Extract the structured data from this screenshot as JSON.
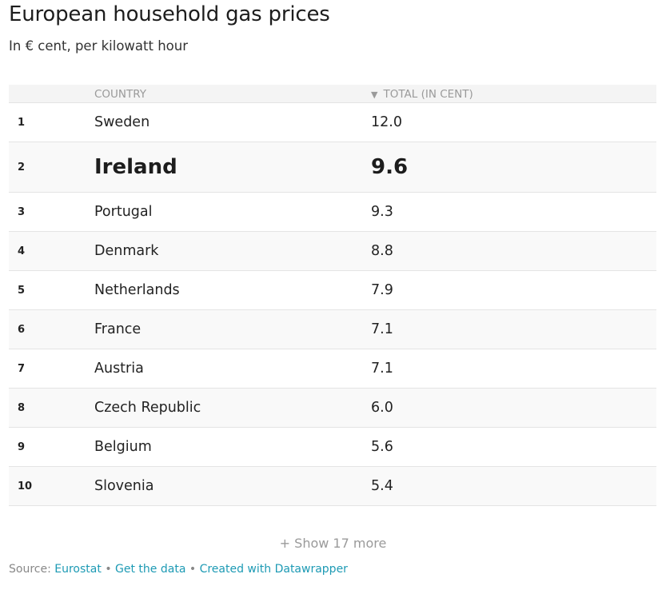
{
  "title": "European household gas prices",
  "subtitle": "In € cent, per kilowatt hour",
  "table": {
    "headers": {
      "country": "COUNTRY",
      "total": "TOTAL (IN CENT)",
      "sort_icon": "▼"
    }
  },
  "chart_data": {
    "type": "table",
    "title": "European household gas prices",
    "subtitle": "In € cent, per kilowatt hour",
    "columns": [
      "",
      "COUNTRY",
      "TOTAL (IN CENT)"
    ],
    "sorted_by": "TOTAL (IN CENT)",
    "sort_order": "descending",
    "highlighted": "Ireland",
    "rows": [
      {
        "rank": "1",
        "country": "Sweden",
        "value": "12.0"
      },
      {
        "rank": "2",
        "country": "Ireland",
        "value": "9.6"
      },
      {
        "rank": "3",
        "country": "Portugal",
        "value": "9.3"
      },
      {
        "rank": "4",
        "country": "Denmark",
        "value": "8.8"
      },
      {
        "rank": "5",
        "country": "Netherlands",
        "value": "7.9"
      },
      {
        "rank": "6",
        "country": "France",
        "value": "7.1"
      },
      {
        "rank": "7",
        "country": "Austria",
        "value": "7.1"
      },
      {
        "rank": "8",
        "country": "Czech Republic",
        "value": "6.0"
      },
      {
        "rank": "9",
        "country": "Belgium",
        "value": "5.6"
      },
      {
        "rank": "10",
        "country": "Slovenia",
        "value": "5.4"
      }
    ]
  },
  "show_more": "+ Show 17 more",
  "footer": {
    "source_label": "Source:",
    "source_link": "Eurostat",
    "separator": "•",
    "data_link": "Get the data",
    "credit_link": "Created with Datawrapper"
  },
  "colors": {
    "link": "#1d9ab4",
    "header_bg": "#f4f4f4",
    "row_alt_bg": "#f9f9f9",
    "muted_text": "#9a9a9a"
  }
}
